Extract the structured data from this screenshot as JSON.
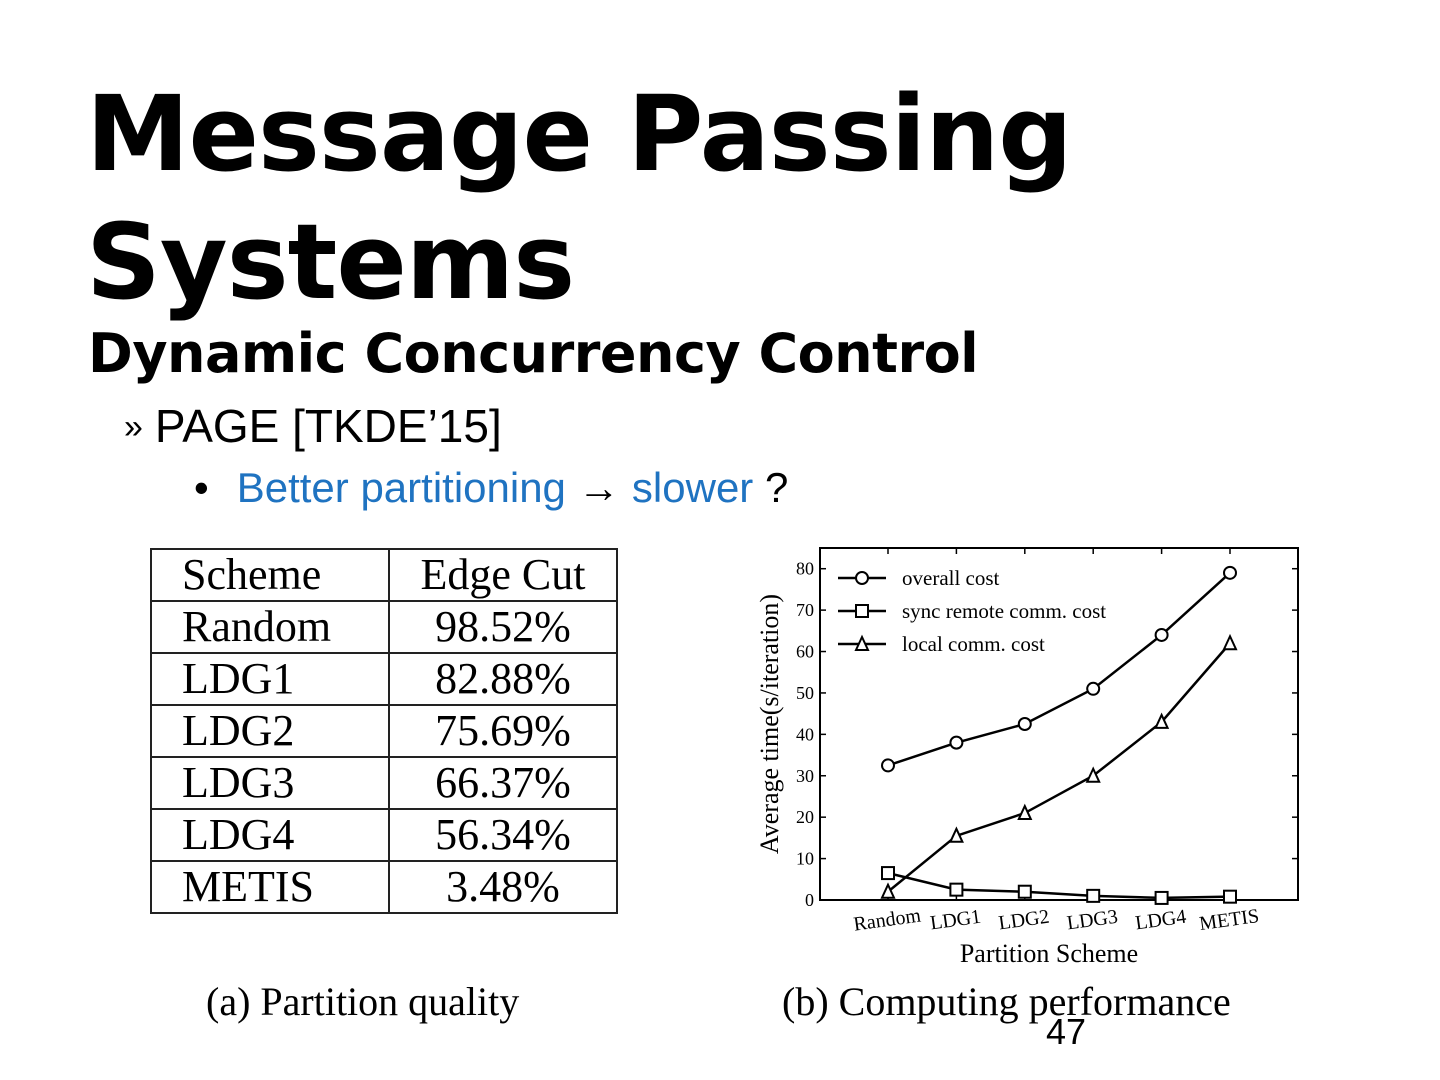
{
  "slide": {
    "title_line1": "Message Passing",
    "title_line2": "Systems",
    "subtitle": "Dynamic Concurrency Control",
    "bullet1_marker": "»",
    "bullet1": "PAGE [TKDE’15]",
    "bullet2_marker": "•",
    "bullet2_part1": "Better partitioning",
    "bullet2_arrow": "→",
    "bullet2_part2": "slower",
    "bullet2_tail": "?",
    "page_number": "47",
    "accent_color": "#1f73c1"
  },
  "table": {
    "headers": [
      "Scheme",
      "Edge Cut"
    ],
    "rows": [
      [
        "Random",
        "98.52%"
      ],
      [
        "LDG1",
        "82.88%"
      ],
      [
        "LDG2",
        "75.69%"
      ],
      [
        "LDG3",
        "66.37%"
      ],
      [
        "LDG4",
        "56.34%"
      ],
      [
        "METIS",
        "3.48%"
      ]
    ],
    "caption": "(a)  Partition quality"
  },
  "chart_data": {
    "type": "line",
    "caption": "(b)  Computing performance",
    "xlabel": "Partition Scheme",
    "ylabel": "Average time(s/iteration)",
    "categories": [
      "Random",
      "LDG1",
      "LDG2",
      "LDG3",
      "LDG4",
      "METIS"
    ],
    "ylim": [
      0,
      85
    ],
    "yticks": [
      0,
      10,
      20,
      30,
      40,
      50,
      60,
      70,
      80
    ],
    "grid": false,
    "legend_position": "top-left",
    "series": [
      {
        "name": "overall cost",
        "marker": "circle",
        "values": [
          32.5,
          38,
          42.5,
          51,
          64,
          79
        ]
      },
      {
        "name": "sync remote comm. cost",
        "marker": "square",
        "values": [
          6.5,
          2.5,
          2,
          1,
          0.5,
          0.8
        ]
      },
      {
        "name": "local comm. cost",
        "marker": "triangle",
        "values": [
          2,
          15.5,
          21,
          30,
          43,
          62
        ]
      }
    ]
  }
}
